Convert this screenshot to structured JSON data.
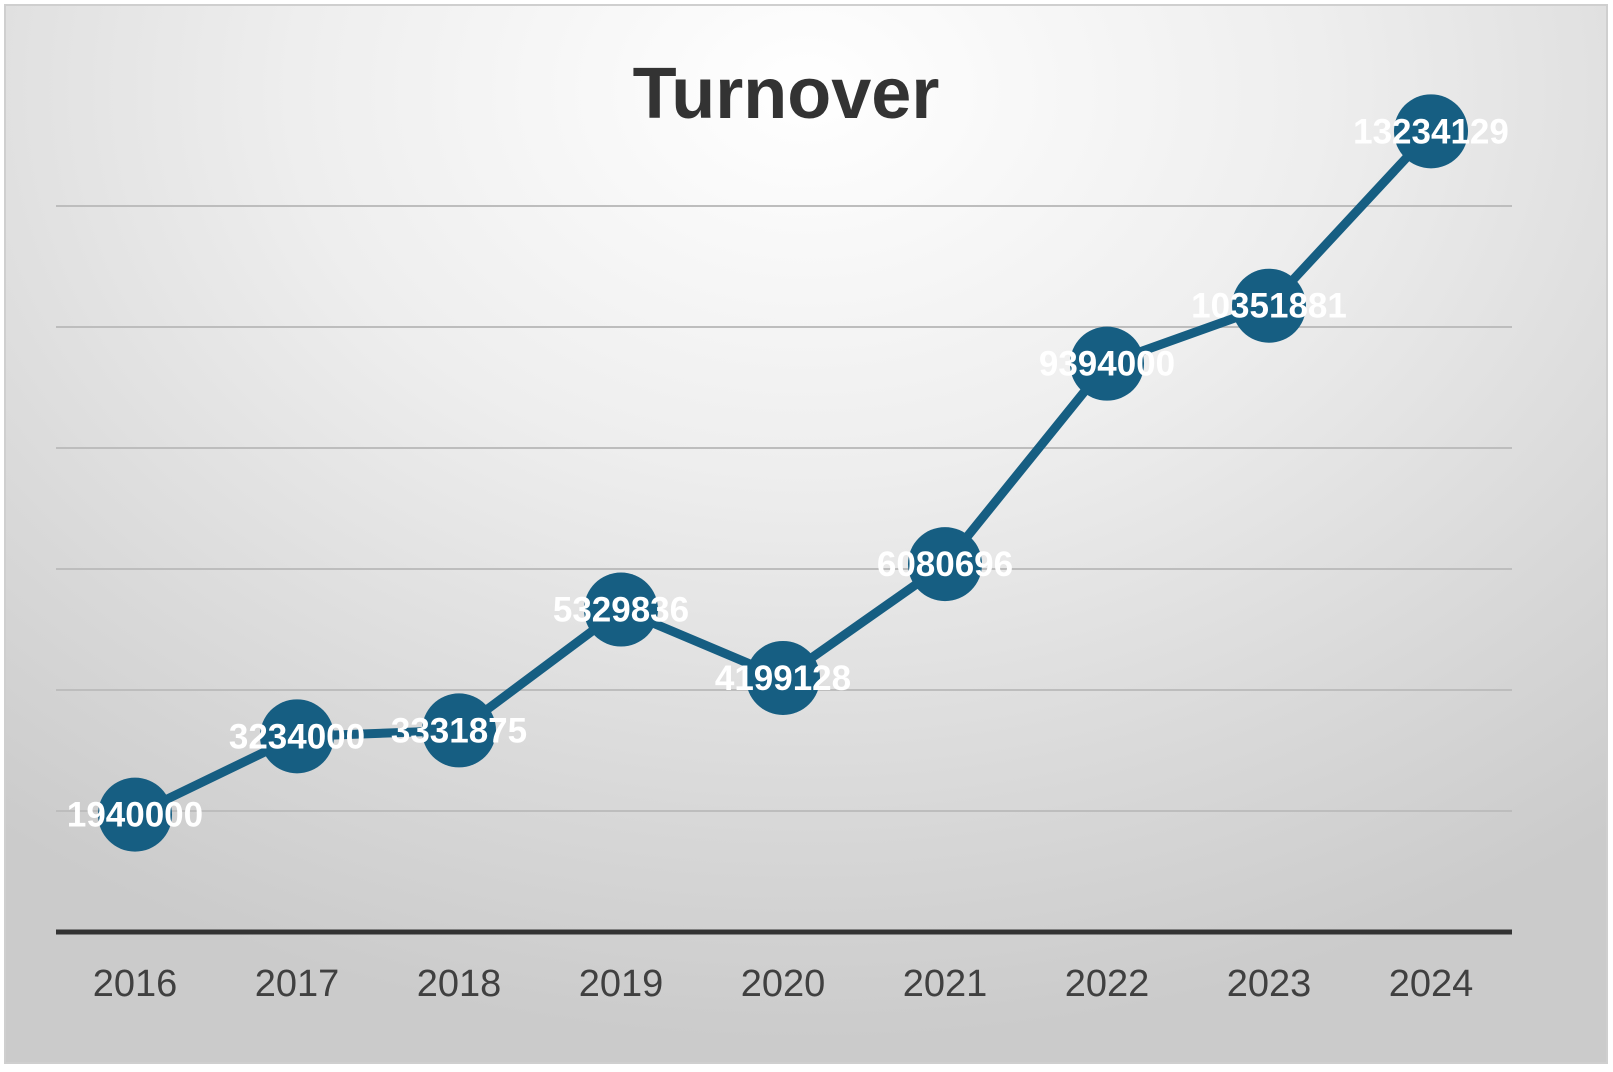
{
  "chart_data": {
    "type": "line",
    "title": "Turnover",
    "xlabel": "",
    "ylabel": "",
    "categories": [
      "2016",
      "2017",
      "2018",
      "2019",
      "2020",
      "2021",
      "2022",
      "2023",
      "2024"
    ],
    "series": [
      {
        "values": [
          1940000,
          3234000,
          3331875,
          5329836,
          4199128,
          6080696,
          9394000,
          10351881,
          13234129
        ]
      }
    ],
    "ylim": [
      0,
      14000000
    ],
    "y_gridline_step": 2000000,
    "grid": true,
    "y_tick_labels_shown": false,
    "legend": "none",
    "data_labels": "on markers",
    "colors": {
      "line": "#165E82",
      "marker": "#165E82",
      "data_label": "#ffffff",
      "gridline": "#bdbdbd",
      "axis": "#333333",
      "title": "#333333"
    }
  }
}
